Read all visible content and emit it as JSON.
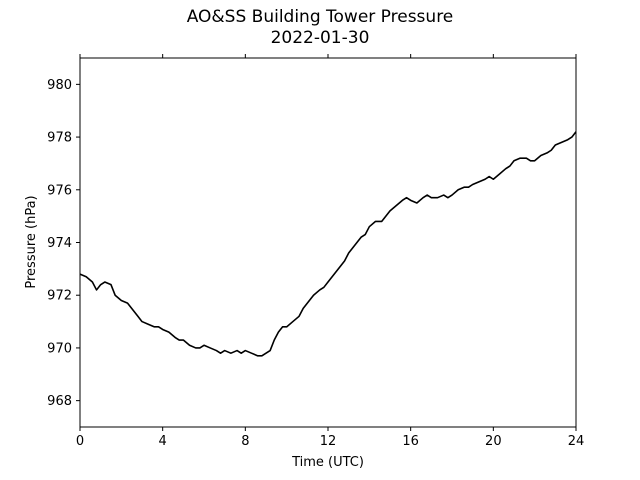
{
  "chart_data": {
    "type": "line",
    "title": "AO&SS Building Tower Pressure",
    "subtitle": "2022-01-30",
    "xlabel": "Time (UTC)",
    "ylabel": "Pressure (hPa)",
    "xlim": [
      0,
      24
    ],
    "ylim": [
      967,
      981
    ],
    "xticks": [
      "0",
      "4",
      "8",
      "12",
      "16",
      "20",
      "24"
    ],
    "yticks": [
      "968",
      "970",
      "972",
      "974",
      "976",
      "978",
      "980"
    ],
    "grid": false,
    "line_color": "#000000",
    "series": [
      {
        "x": [
          0,
          0.3,
          0.6,
          0.8,
          1.0,
          1.2,
          1.5,
          1.7,
          2.0,
          2.3,
          2.5,
          2.8,
          3.0,
          3.3,
          3.6,
          3.8,
          4.0,
          4.3,
          4.6,
          4.8,
          5.0,
          5.3,
          5.6,
          5.8,
          6.0,
          6.3,
          6.6,
          6.8,
          7.0,
          7.3,
          7.6,
          7.8,
          8.0,
          8.3,
          8.6,
          8.8,
          9.0,
          9.2,
          9.4,
          9.6,
          9.8,
          10.0,
          10.3,
          10.6,
          10.8,
          11.0,
          11.3,
          11.6,
          11.8,
          12.0,
          12.3,
          12.6,
          12.8,
          13.0,
          13.3,
          13.6,
          13.8,
          14.0,
          14.3,
          14.6,
          14.8,
          15.0,
          15.3,
          15.6,
          15.8,
          16.0,
          16.3,
          16.6,
          16.8,
          17.0,
          17.3,
          17.6,
          17.8,
          18.0,
          18.3,
          18.6,
          18.8,
          19.0,
          19.3,
          19.6,
          19.8,
          20.0,
          20.3,
          20.6,
          20.8,
          21.0,
          21.3,
          21.6,
          21.8,
          22.0,
          22.3,
          22.6,
          22.8,
          23.0,
          23.3,
          23.6,
          23.8,
          24.0
        ],
        "values": [
          972.8,
          972.7,
          972.5,
          972.2,
          972.4,
          972.5,
          972.4,
          972.0,
          971.8,
          971.7,
          971.5,
          971.2,
          971.0,
          970.9,
          970.8,
          970.8,
          970.7,
          970.6,
          970.4,
          970.3,
          970.3,
          970.1,
          970.0,
          970.0,
          970.1,
          970.0,
          969.9,
          969.8,
          969.9,
          969.8,
          969.9,
          969.8,
          969.9,
          969.8,
          969.7,
          969.7,
          969.8,
          969.9,
          970.3,
          970.6,
          970.8,
          970.8,
          971.0,
          971.2,
          971.5,
          971.7,
          972.0,
          972.2,
          972.3,
          972.5,
          972.8,
          973.1,
          973.3,
          973.6,
          973.9,
          974.2,
          974.3,
          974.6,
          974.8,
          974.8,
          975.0,
          975.2,
          975.4,
          975.6,
          975.7,
          975.6,
          975.5,
          975.7,
          975.8,
          975.7,
          975.7,
          975.8,
          975.7,
          975.8,
          976.0,
          976.1,
          976.1,
          976.2,
          976.3,
          976.4,
          976.5,
          976.4,
          976.6,
          976.8,
          976.9,
          977.1,
          977.2,
          977.2,
          977.1,
          977.1,
          977.3,
          977.4,
          977.5,
          977.7,
          977.8,
          977.9,
          978.0,
          978.2
        ]
      }
    ]
  }
}
